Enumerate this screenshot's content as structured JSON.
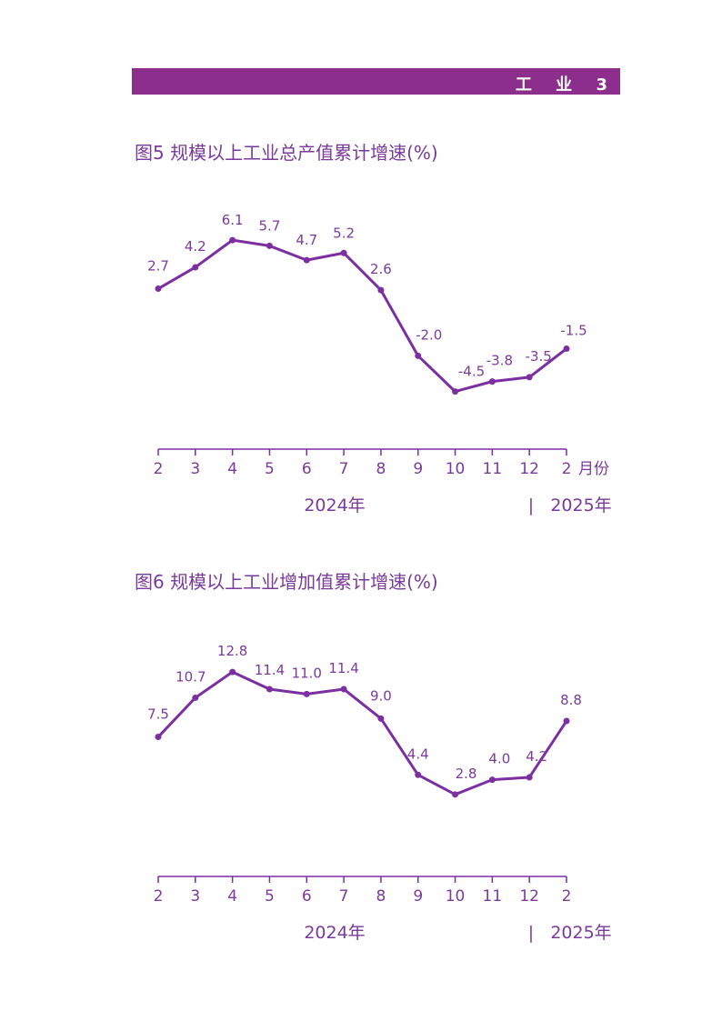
{
  "header": {
    "section": "工 业",
    "page_number": "3"
  },
  "chart_data": [
    {
      "type": "line",
      "title": "图5  规模以上工业总产值累计增速(%)",
      "categories": [
        "2",
        "3",
        "4",
        "5",
        "6",
        "7",
        "8",
        "9",
        "10",
        "11",
        "12",
        "2"
      ],
      "values": [
        2.7,
        4.2,
        6.1,
        5.7,
        4.7,
        5.2,
        2.6,
        -2.0,
        -4.5,
        -3.8,
        -3.5,
        -1.5
      ],
      "value_labels": [
        "2.7",
        "4.2",
        "6.1",
        "5.7",
        "4.7",
        "5.2",
        "2.6",
        "-2.0",
        "-4.5",
        "-3.8",
        "-3.5",
        "-1.5"
      ],
      "x_unit": "月份",
      "year_labels": [
        "2024年",
        "2025年"
      ],
      "year_separator": "|",
      "ylim": [
        -10,
        7
      ],
      "line_color": "#7b2fa0",
      "grid": false
    },
    {
      "type": "line",
      "title": "图6  规模以上工业增加值累计增速(%)",
      "categories": [
        "2",
        "3",
        "4",
        "5",
        "6",
        "7",
        "8",
        "9",
        "10",
        "11",
        "12",
        "2"
      ],
      "values": [
        7.5,
        10.7,
        12.8,
        11.4,
        11.0,
        11.4,
        9.0,
        4.4,
        2.8,
        4.0,
        4.2,
        8.8
      ],
      "value_labels": [
        "7.5",
        "10.7",
        "12.8",
        "11.4",
        "11.0",
        "11.4",
        "9.0",
        "4.4",
        "2.8",
        "4.0",
        "4.2",
        "8.8"
      ],
      "x_unit": "",
      "year_labels": [
        "2024年",
        "2025年"
      ],
      "year_separator": "|",
      "ylim": [
        -1,
        14
      ],
      "line_color": "#7b2fa0",
      "grid": false
    }
  ]
}
